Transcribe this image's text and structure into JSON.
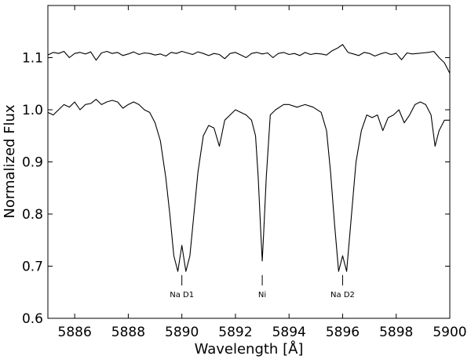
{
  "chart_data": {
    "type": "line",
    "title": "",
    "xlabel": "Wavelength [Å]",
    "ylabel": "Normalized Flux",
    "xlim": [
      5885,
      5900
    ],
    "ylim": [
      0.6,
      1.2
    ],
    "xticks": [
      5886,
      5888,
      5890,
      5892,
      5894,
      5896,
      5898,
      5900
    ],
    "yticks": [
      0.6,
      0.7,
      0.8,
      0.9,
      1.0,
      1.1
    ],
    "xtick_labels": [
      "5886",
      "5888",
      "5890",
      "5892",
      "5894",
      "5896",
      "5898",
      "5900"
    ],
    "ytick_labels": [
      "0.6",
      "0.7",
      "0.8",
      "0.9",
      "1.0",
      "1.1"
    ],
    "grid": false,
    "legend": "none",
    "annotations": [
      {
        "label": "Na D1",
        "x": 5890.0,
        "y_top": 0.683,
        "y_bottom": 0.663
      },
      {
        "label": "Ni",
        "x": 5893.0,
        "y_top": 0.683,
        "y_bottom": 0.663
      },
      {
        "label": "Na D2",
        "x": 5896.0,
        "y_top": 0.683,
        "y_bottom": 0.663
      }
    ],
    "series": [
      {
        "color": "#000000",
        "x": [
          5885.0,
          5885.2,
          5885.4,
          5885.6,
          5885.8,
          5886.0,
          5886.2,
          5886.4,
          5886.6,
          5886.8,
          5887.0,
          5887.2,
          5887.4,
          5887.6,
          5887.8,
          5888.0,
          5888.2,
          5888.4,
          5888.6,
          5888.8,
          5889.0,
          5889.2,
          5889.4,
          5889.6,
          5889.8,
          5890.0,
          5890.2,
          5890.4,
          5890.6,
          5890.8,
          5891.0,
          5891.2,
          5891.4,
          5891.6,
          5891.8,
          5892.0,
          5892.2,
          5892.4,
          5892.6,
          5892.8,
          5893.0,
          5893.2,
          5893.4,
          5893.6,
          5893.8,
          5894.0,
          5894.2,
          5894.4,
          5894.6,
          5894.8,
          5895.0,
          5895.2,
          5895.4,
          5895.6,
          5895.8,
          5896.0,
          5896.2,
          5896.4,
          5896.6,
          5896.8,
          5897.0,
          5897.2,
          5897.4,
          5897.6,
          5897.8,
          5898.0,
          5898.2,
          5898.4,
          5898.6,
          5898.8,
          5899.0,
          5899.2,
          5899.4,
          5899.6,
          5899.8,
          5900.0
        ],
        "y": [
          1.105,
          1.11,
          1.108,
          1.112,
          1.1,
          1.108,
          1.11,
          1.107,
          1.111,
          1.095,
          1.109,
          1.112,
          1.108,
          1.11,
          1.104,
          1.107,
          1.111,
          1.106,
          1.109,
          1.108,
          1.105,
          1.107,
          1.103,
          1.11,
          1.108,
          1.112,
          1.109,
          1.106,
          1.111,
          1.108,
          1.104,
          1.108,
          1.106,
          1.098,
          1.108,
          1.11,
          1.105,
          1.1,
          1.108,
          1.11,
          1.107,
          1.109,
          1.1,
          1.108,
          1.11,
          1.106,
          1.108,
          1.104,
          1.11,
          1.106,
          1.108,
          1.107,
          1.105,
          1.113,
          1.118,
          1.125,
          1.11,
          1.107,
          1.104,
          1.11,
          1.108,
          1.103,
          1.107,
          1.11,
          1.106,
          1.108,
          1.096,
          1.109,
          1.107,
          1.108,
          1.109,
          1.11,
          1.112,
          1.1,
          1.09,
          1.07
        ]
      },
      {
        "color": "#000000",
        "x": [
          5885.0,
          5885.2,
          5885.4,
          5885.6,
          5885.8,
          5886.0,
          5886.2,
          5886.4,
          5886.6,
          5886.8,
          5887.0,
          5887.2,
          5887.4,
          5887.6,
          5887.8,
          5888.0,
          5888.2,
          5888.4,
          5888.6,
          5888.8,
          5889.0,
          5889.2,
          5889.4,
          5889.55,
          5889.7,
          5889.85,
          5890.0,
          5890.15,
          5890.3,
          5890.45,
          5890.6,
          5890.8,
          5891.0,
          5891.2,
          5891.4,
          5891.6,
          5891.8,
          5892.0,
          5892.2,
          5892.4,
          5892.6,
          5892.75,
          5892.85,
          5892.95,
          5893.0,
          5893.05,
          5893.15,
          5893.3,
          5893.5,
          5893.8,
          5894.0,
          5894.3,
          5894.6,
          5894.9,
          5895.2,
          5895.4,
          5895.55,
          5895.7,
          5895.85,
          5896.0,
          5896.15,
          5896.3,
          5896.5,
          5896.7,
          5896.9,
          5897.1,
          5897.3,
          5897.5,
          5897.7,
          5897.9,
          5898.1,
          5898.3,
          5898.5,
          5898.7,
          5898.9,
          5899.1,
          5899.3,
          5899.45,
          5899.6,
          5899.8,
          5900.0
        ],
        "y": [
          0.995,
          0.99,
          1.0,
          1.01,
          1.005,
          1.015,
          1.0,
          1.01,
          1.012,
          1.02,
          1.01,
          1.015,
          1.018,
          1.015,
          1.003,
          1.01,
          1.015,
          1.01,
          1.0,
          0.995,
          0.975,
          0.94,
          0.87,
          0.8,
          0.72,
          0.69,
          0.74,
          0.69,
          0.72,
          0.8,
          0.88,
          0.95,
          0.97,
          0.965,
          0.93,
          0.98,
          0.99,
          1.0,
          0.995,
          0.99,
          0.98,
          0.95,
          0.87,
          0.76,
          0.71,
          0.76,
          0.87,
          0.99,
          1.0,
          1.01,
          1.01,
          1.005,
          1.01,
          1.005,
          0.995,
          0.96,
          0.88,
          0.78,
          0.69,
          0.72,
          0.69,
          0.78,
          0.9,
          0.96,
          0.99,
          0.985,
          0.99,
          0.96,
          0.985,
          0.99,
          1.0,
          0.975,
          0.99,
          1.01,
          1.015,
          1.01,
          0.99,
          0.93,
          0.96,
          0.98,
          0.98
        ]
      }
    ]
  }
}
